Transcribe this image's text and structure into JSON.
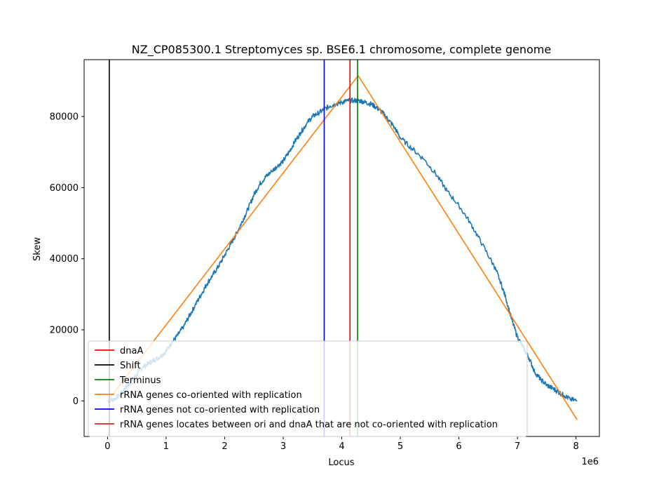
{
  "chart_data": {
    "type": "line",
    "title": "NZ_CP085300.1 Streptomyces sp. BSE6.1 chromosome, complete genome",
    "xlabel": "Locus",
    "ylabel": "Skew",
    "x_offset_label": "1e6",
    "xlim": [
      -0.4,
      8.4
    ],
    "ylim": [
      -10000,
      96000
    ],
    "x_ticks": [
      0,
      1,
      2,
      3,
      4,
      5,
      6,
      7,
      8
    ],
    "x_tick_labels": [
      "0",
      "1",
      "2",
      "3",
      "4",
      "5",
      "6",
      "7",
      "8"
    ],
    "y_ticks": [
      0,
      20000,
      40000,
      60000,
      80000
    ],
    "y_tick_labels": [
      "0",
      "20000",
      "40000",
      "60000",
      "80000"
    ],
    "grid": false,
    "legend_position": "lower-left",
    "series": [
      {
        "name": "",
        "color": "#1f77b4",
        "style": "noisy",
        "x": [
          0,
          0.1,
          0.2,
          0.3,
          0.4,
          0.5,
          0.6,
          0.7,
          0.8,
          0.9,
          1.0,
          1.1,
          1.2,
          1.3,
          1.4,
          1.5,
          1.6,
          1.7,
          1.8,
          1.9,
          2.0,
          2.1,
          2.2,
          2.3,
          2.4,
          2.5,
          2.6,
          2.7,
          2.8,
          2.9,
          3.0,
          3.1,
          3.2,
          3.3,
          3.4,
          3.5,
          3.6,
          3.7,
          3.8,
          3.9,
          4.0,
          4.1,
          4.2,
          4.3,
          4.4,
          4.5,
          4.6,
          4.7,
          4.8,
          4.9,
          5.0,
          5.2,
          5.4,
          5.6,
          5.8,
          6.0,
          6.2,
          6.4,
          6.6,
          6.7,
          6.8,
          6.9,
          7.0,
          7.1,
          7.2,
          7.3,
          7.4,
          7.5,
          7.6,
          7.7,
          7.8,
          7.9,
          8.02
        ],
        "y": [
          0,
          400,
          1500,
          3500,
          5500,
          7500,
          9500,
          10500,
          11500,
          12500,
          14000,
          16500,
          18500,
          21000,
          24000,
          27000,
          30000,
          33000,
          35500,
          38000,
          41000,
          44000,
          47000,
          50500,
          54000,
          58000,
          61000,
          63000,
          64500,
          66000,
          67500,
          70000,
          73000,
          75500,
          78000,
          80000,
          81000,
          82000,
          83000,
          83500,
          84000,
          84500,
          84500,
          84500,
          84000,
          83500,
          82500,
          81000,
          79000,
          77000,
          74000,
          71000,
          68000,
          64000,
          59000,
          55000,
          50000,
          44000,
          38000,
          34000,
          29000,
          23000,
          18000,
          15000,
          12000,
          8000,
          6000,
          4500,
          3500,
          2500,
          1500,
          500,
          0
        ]
      },
      {
        "name": "rRNA genes co-oriented with replication",
        "color": "#ff7f0e",
        "style": "line",
        "x": [
          0,
          4.28,
          8.02
        ],
        "y": [
          0,
          91500,
          -5300
        ]
      }
    ],
    "vlines": [
      {
        "name": "Shift",
        "x": 0.03,
        "color": "#000000"
      },
      {
        "name": "rRNA genes not co-oriented with replication",
        "x": 3.7,
        "color": "#0000ff"
      },
      {
        "name": "dnaA",
        "x": 4.14,
        "color": "#ff0000"
      },
      {
        "name": "Terminus",
        "x": 4.27,
        "color": "#008000"
      }
    ],
    "legend": [
      {
        "label": "dnaA",
        "color": "#ff0000"
      },
      {
        "label": "Shift",
        "color": "#000000"
      },
      {
        "label": "Terminus",
        "color": "#008000"
      },
      {
        "label": "rRNA genes co-oriented with replication",
        "color": "#ff7f0e"
      },
      {
        "label": "rRNA genes not co-oriented with replication",
        "color": "#0000ff"
      },
      {
        "label": "rRNA genes locates between ori and dnaA that are not co-oriented with replication",
        "color": "#d62728"
      }
    ]
  }
}
